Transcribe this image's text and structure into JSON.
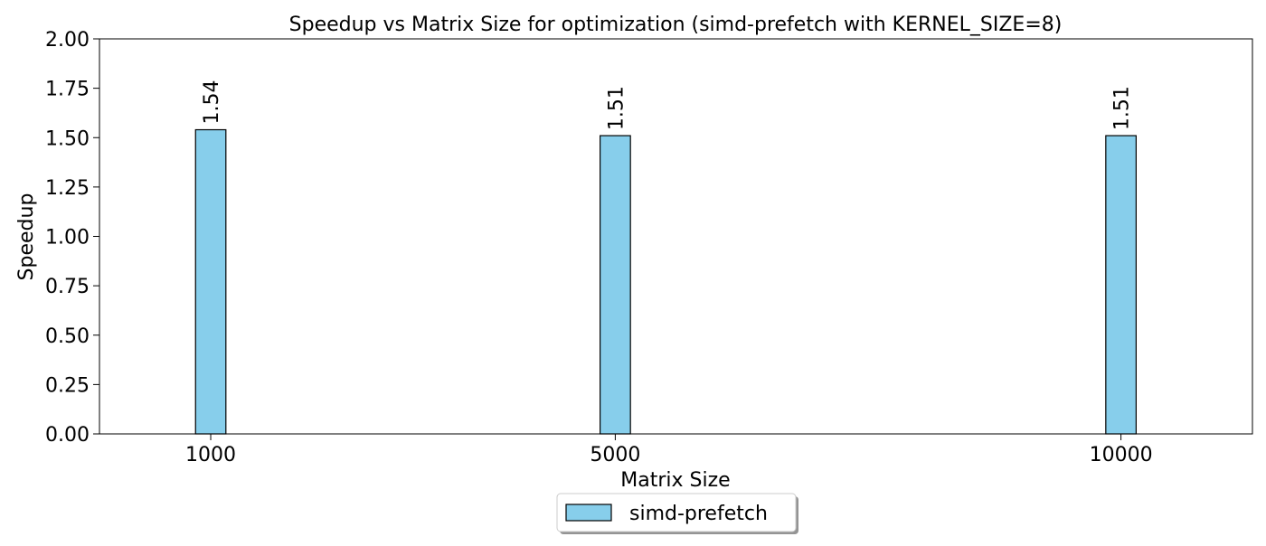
{
  "chart_data": {
    "type": "bar",
    "title": "Speedup vs Matrix Size for optimization (simd-prefetch with KERNEL_SIZE=8)",
    "xlabel": "Matrix Size",
    "ylabel": "Speedup",
    "x_scale": "linear",
    "xlim": [
      -100,
      11300
    ],
    "ylim": [
      0,
      2.0
    ],
    "yticks": [
      "0.00",
      "0.25",
      "0.50",
      "0.75",
      "1.00",
      "1.25",
      "1.50",
      "1.75",
      "2.00"
    ],
    "categories": [
      "1000",
      "5000",
      "10000"
    ],
    "x": [
      1000,
      5000,
      10000
    ],
    "bar_width": 300,
    "series": [
      {
        "name": "simd-prefetch",
        "values": [
          1.54,
          1.51,
          1.51
        ],
        "labels": [
          "1.54",
          "1.51",
          "1.51"
        ],
        "color": "#87ceeb",
        "edgecolor": "#000000"
      }
    ],
    "grid": false,
    "legend": {
      "placement": "bottom-center",
      "shadow": true
    }
  }
}
